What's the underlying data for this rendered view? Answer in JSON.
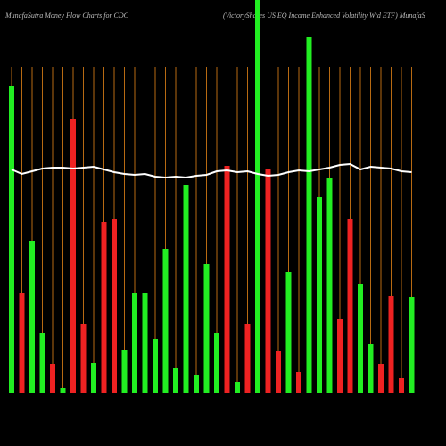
{
  "chart_data": {
    "type": "bar",
    "title": "MunafaSutra  Money Flow  Charts for CDC",
    "subtitle": "(VictoryShares US EQ Income   Enhanced Volatility Wtd ETF) MunafaS",
    "categories": [
      null,
      null,
      null,
      null,
      null,
      null,
      null,
      null,
      null,
      null,
      null,
      null,
      null,
      null,
      null,
      null,
      null,
      null,
      null,
      null,
      null,
      null,
      null,
      null,
      null,
      null,
      null,
      null,
      null,
      null,
      null,
      null,
      null,
      null,
      null,
      null,
      null,
      null,
      null,
      null
    ],
    "values": [
      345,
      112,
      171,
      68,
      33,
      6,
      308,
      78,
      34,
      192,
      196,
      49,
      112,
      112,
      61,
      162,
      29,
      234,
      21,
      145,
      68,
      255,
      13,
      78,
      441,
      251,
      47,
      136,
      24,
      400,
      220,
      241,
      83,
      196,
      123,
      55,
      33,
      109,
      17,
      108
    ],
    "bar_colors": [
      "#22ee22",
      "#ee2222",
      "#22ee22",
      "#22ee22",
      "#ee2222",
      "#22ee22",
      "#ee2222",
      "#ee2222",
      "#22ee22",
      "#ee2222",
      "#ee2222",
      "#22ee22",
      "#22ee22",
      "#22ee22",
      "#22ee22",
      "#22ee22",
      "#22ee22",
      "#22ee22",
      "#22ee22",
      "#22ee22",
      "#22ee22",
      "#ee2222",
      "#22ee22",
      "#ee2222",
      "#22ee22",
      "#ee2222",
      "#ee2222",
      "#22ee22",
      "#ee2222",
      "#22ee22",
      "#22ee22",
      "#22ee22",
      "#ee2222",
      "#ee2222",
      "#22ee22",
      "#22ee22",
      "#ee2222",
      "#ee2222",
      "#ee2222",
      "#22ee22"
    ],
    "line": {
      "color": "#ffffff",
      "values": [
        251,
        246,
        249,
        252,
        253,
        253,
        252,
        253,
        254,
        251,
        248,
        246,
        245,
        246,
        243,
        242,
        243,
        242,
        244,
        245,
        249,
        250,
        248,
        249,
        246,
        244,
        245,
        248,
        250,
        249,
        251,
        253,
        256,
        257,
        251,
        254,
        253,
        252,
        249,
        248
      ]
    },
    "ylim": [
      0,
      441
    ],
    "grid_color": "#b86a12"
  }
}
